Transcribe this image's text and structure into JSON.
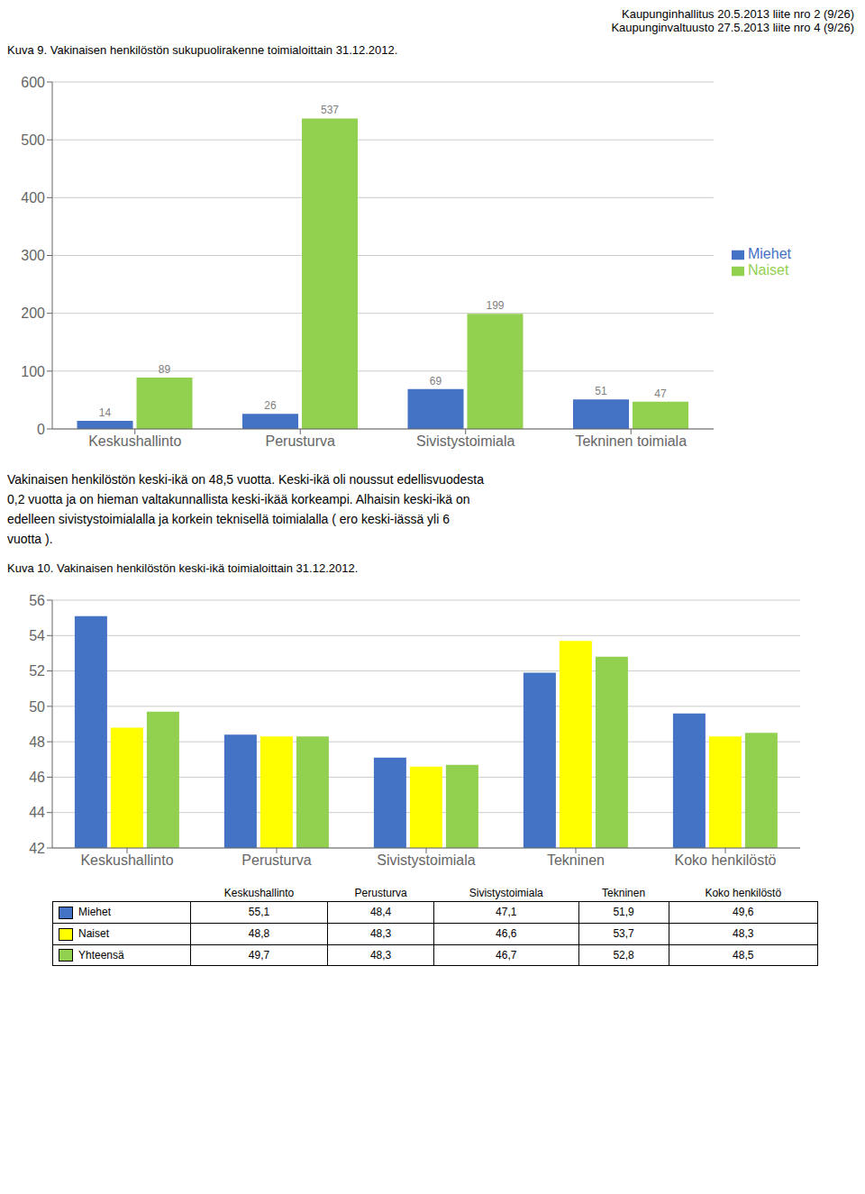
{
  "chart_data": [
    {
      "type": "bar",
      "annotations": [
        "Kaupunginhallitus 20.5.2013 liite nro 2 (9/26)",
        "Kaupunginvaltuusto 27.5.2013 liite nro 4 (9/26)"
      ],
      "title": "Kuva 9. Vakinaisen henkilöstön sukupuolirakenne toimialoittain 31.12.2012.",
      "categories": [
        "Keskushallinto",
        "Perusturva",
        "Sivistystoimiala",
        "Tekninen toimiala"
      ],
      "series": [
        {
          "name": "Miehet",
          "color": "#4472C4",
          "values": [
            14,
            26,
            69,
            51
          ]
        },
        {
          "name": "Naiset",
          "color": "#92D050",
          "values": [
            89,
            537,
            199,
            47
          ]
        }
      ],
      "ylim": [
        0,
        600
      ],
      "yticks": [
        0,
        100,
        200,
        300,
        400,
        500,
        600
      ],
      "grid": true,
      "legend": "right",
      "data_labels": true
    },
    {
      "type": "bar",
      "annotations": [
        "Vakinaisen henkilöstön keski-ikä on 48,5 vuotta. Keski-ikä oli noussut edellisvuodesta",
        "0,2 vuotta ja on hieman valtakunnallista keski-ikää korkeampi. Alhaisin keski-ikä on",
        "edelleen sivistystoimialalla ja korkein teknisellä toimialalla ( ero keski-iässä yli 6",
        "vuotta )."
      ],
      "title": "Kuva 10. Vakinaisen henkilöstön keski-ikä toimialoittain 31.12.2012.",
      "categories": [
        "Keskushallinto",
        "Perusturva",
        "Sivistystoimiala",
        "Tekninen",
        "Koko henkilöstö"
      ],
      "series": [
        {
          "name": "Miehet",
          "color": "#4472C4",
          "values": [
            55.1,
            48.4,
            47.1,
            51.9,
            49.6
          ],
          "value_labels": [
            "55,1",
            "48,4",
            "47,1",
            "51,9",
            "49,6"
          ]
        },
        {
          "name": "Naiset",
          "color": "#FFFF00",
          "values": [
            48.8,
            48.3,
            46.6,
            53.7,
            48.3
          ],
          "value_labels": [
            "48,8",
            "48,3",
            "46,6",
            "53,7",
            "48,3"
          ]
        },
        {
          "name": "Yhteensä",
          "color": "#92D050",
          "values": [
            49.7,
            48.3,
            46.7,
            52.8,
            48.5
          ],
          "value_labels": [
            "49,7",
            "48,3",
            "46,7",
            "52,8",
            "48,5"
          ]
        }
      ],
      "ylim": [
        42,
        56
      ],
      "yticks": [
        42,
        44,
        46,
        48,
        50,
        52,
        54,
        56
      ],
      "grid": true
    }
  ]
}
